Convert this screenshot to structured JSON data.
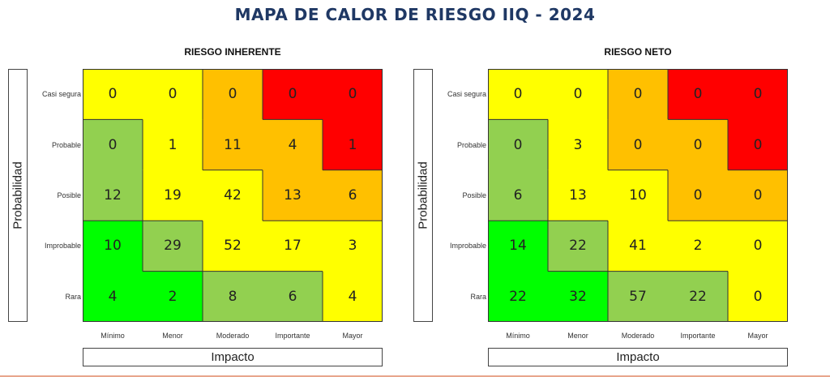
{
  "title": "MAPA DE CALOR DE RIESGO IIQ - 2024",
  "y_axis_label": "Probabilidad",
  "x_axis_label": "Impacto",
  "probability_levels": [
    "Casi segura",
    "Probable",
    "Posible",
    "Improbable",
    "Rara"
  ],
  "impact_levels": [
    "Mínimo",
    "Menor",
    "Moderado",
    "Importante",
    "Mayor"
  ],
  "colors": {
    "red": "#ff0000",
    "orange": "#ffc000",
    "yellow": "#ffff00",
    "light_green": "#92d050",
    "green": "#00ff00"
  },
  "color_map": [
    [
      "yellow",
      "yellow",
      "orange",
      "red",
      "red"
    ],
    [
      "light_green",
      "yellow",
      "orange",
      "orange",
      "red"
    ],
    [
      "light_green",
      "yellow",
      "yellow",
      "orange",
      "orange"
    ],
    [
      "green",
      "light_green",
      "yellow",
      "yellow",
      "yellow"
    ],
    [
      "green",
      "green",
      "light_green",
      "light_green",
      "yellow"
    ]
  ],
  "chart_data": [
    {
      "type": "heatmap",
      "title": "RIESGO INHERENTE",
      "xlabel": "Impacto",
      "ylabel": "Probabilidad",
      "x_categories": [
        "Mínimo",
        "Menor",
        "Moderado",
        "Importante",
        "Mayor"
      ],
      "y_categories": [
        "Casi segura",
        "Probable",
        "Posible",
        "Improbable",
        "Rara"
      ],
      "values": [
        [
          0,
          0,
          0,
          0,
          0
        ],
        [
          0,
          1,
          11,
          4,
          1
        ],
        [
          12,
          19,
          42,
          13,
          6
        ],
        [
          10,
          29,
          52,
          17,
          3
        ],
        [
          4,
          2,
          8,
          6,
          4
        ]
      ]
    },
    {
      "type": "heatmap",
      "title": "RIESGO NETO",
      "xlabel": "Impacto",
      "ylabel": "Probabilidad",
      "x_categories": [
        "Mínimo",
        "Menor",
        "Moderado",
        "Importante",
        "Mayor"
      ],
      "y_categories": [
        "Casi segura",
        "Probable",
        "Posible",
        "Improbable",
        "Rara"
      ],
      "values": [
        [
          0,
          0,
          0,
          0,
          0
        ],
        [
          0,
          3,
          0,
          0,
          0
        ],
        [
          6,
          13,
          10,
          0,
          0
        ],
        [
          14,
          22,
          41,
          2,
          0
        ],
        [
          22,
          32,
          57,
          22,
          0
        ]
      ]
    }
  ]
}
